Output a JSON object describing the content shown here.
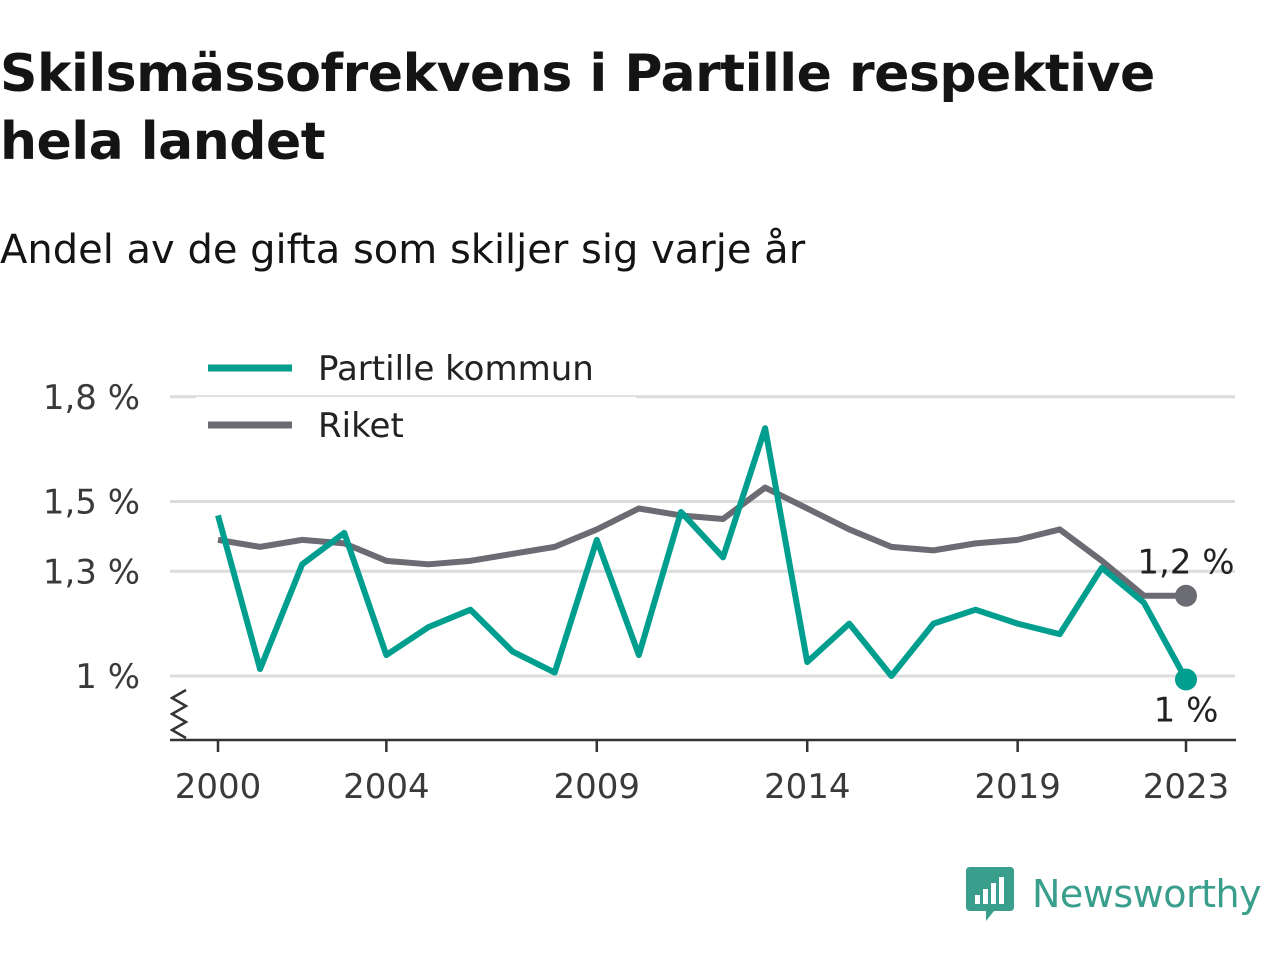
{
  "title": "Skilsmässofrekvens i Partille respektive hela landet",
  "subtitle": "Andel av de gifta som skiljer sig varje år",
  "brand": {
    "name": "Newsworthy",
    "logo_icon": "newsworthy-chart-bubble-icon"
  },
  "colors": {
    "partille": "#009e8e",
    "riket": "#6b6b73",
    "grid": "#dcdcdc",
    "axis": "#333333"
  },
  "chart_data": {
    "type": "line",
    "title": "Skilsmässofrekvens i Partille respektive hela landet",
    "subtitle": "Andel av de gifta som skiljer sig varje år",
    "xlabel": "",
    "ylabel": "",
    "x": [
      2000,
      2001,
      2002,
      2003,
      2004,
      2005,
      2006,
      2007,
      2008,
      2009,
      2010,
      2011,
      2012,
      2013,
      2014,
      2015,
      2016,
      2017,
      2018,
      2019,
      2020,
      2021,
      2022,
      2023
    ],
    "x_ticks": [
      {
        "value": 2000,
        "label": "2000"
      },
      {
        "value": 2004,
        "label": "2004"
      },
      {
        "value": 2009,
        "label": "2009"
      },
      {
        "value": 2014,
        "label": "2014"
      },
      {
        "value": 2019,
        "label": "2019"
      },
      {
        "value": 2023,
        "label": "2023"
      }
    ],
    "y_ticks": [
      {
        "value": 1.0,
        "label": "1 %"
      },
      {
        "value": 1.3,
        "label": "1,3 %"
      },
      {
        "value": 1.5,
        "label": "1,5 %"
      },
      {
        "value": 1.8,
        "label": "1,8 %"
      }
    ],
    "ylim": [
      0.88,
      1.8
    ],
    "xlim": [
      1999,
      2024
    ],
    "grid": true,
    "y_axis_break": true,
    "legend_position": "top-left",
    "series": [
      {
        "name": "Partille kommun",
        "color": "#009e8e",
        "values": [
          1.46,
          1.02,
          1.32,
          1.41,
          1.06,
          1.14,
          1.19,
          1.07,
          1.01,
          1.39,
          1.06,
          1.47,
          1.34,
          1.71,
          1.04,
          1.15,
          1.0,
          1.15,
          1.19,
          1.15,
          1.12,
          1.31,
          1.21,
          0.99
        ],
        "end_label": "1 %"
      },
      {
        "name": "Riket",
        "color": "#6b6b73",
        "values": [
          1.39,
          1.37,
          1.39,
          1.38,
          1.33,
          1.32,
          1.33,
          1.35,
          1.37,
          1.42,
          1.48,
          1.46,
          1.45,
          1.54,
          1.48,
          1.42,
          1.37,
          1.36,
          1.38,
          1.39,
          1.42,
          1.33,
          1.23,
          1.23
        ],
        "end_label": "1,2 %"
      }
    ]
  }
}
